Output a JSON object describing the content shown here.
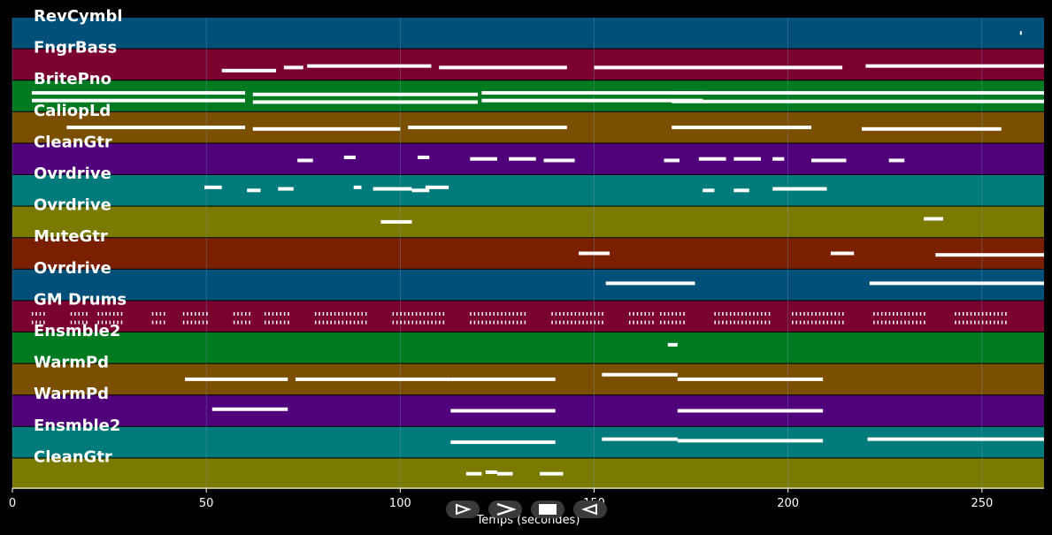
{
  "axis": {
    "xlabel": "Temps (secondes)",
    "xlim": [
      0,
      266
    ],
    "ticks": [
      0,
      50,
      100,
      150,
      200,
      250
    ],
    "tick_labels": [
      "0",
      "50",
      "100",
      "150",
      "200",
      "250"
    ]
  },
  "colors": {
    "background": "#000000",
    "gridline": "#7a9ab8",
    "note": "#ffffff",
    "control": "#3a3a3a"
  },
  "tracks": [
    {
      "name": "RevCymbl",
      "color": "#00507a",
      "notes": [
        [
          259.8,
          260.1,
          0.5
        ]
      ]
    },
    {
      "name": "FngrBass",
      "color": "#7a0030",
      "notes": [
        [
          54,
          68,
          0.7
        ],
        [
          70,
          75,
          0.6
        ],
        [
          76,
          108,
          0.55
        ],
        [
          110,
          143,
          0.6
        ],
        [
          150,
          214,
          0.6
        ],
        [
          220,
          266,
          0.55
        ]
      ]
    },
    {
      "name": "BritePno",
      "color": "#007a20",
      "notes": [
        [
          5,
          60,
          0.4
        ],
        [
          5,
          60,
          0.65
        ],
        [
          62,
          120,
          0.45
        ],
        [
          62,
          120,
          0.7
        ],
        [
          121,
          178,
          0.4
        ],
        [
          121,
          178,
          0.65
        ],
        [
          170,
          266,
          0.4
        ],
        [
          170,
          266,
          0.68
        ]
      ]
    },
    {
      "name": "CaliopLd",
      "color": "#7a5000",
      "notes": [
        [
          14,
          60,
          0.5
        ],
        [
          62,
          100,
          0.55
        ],
        [
          102,
          143,
          0.5
        ],
        [
          170,
          206,
          0.5
        ],
        [
          219,
          255,
          0.55
        ]
      ]
    },
    {
      "name": "CleanGtr",
      "color": "#50007a",
      "notes": [
        [
          73.5,
          77.5,
          0.55
        ],
        [
          85.5,
          88.5,
          0.45
        ],
        [
          104.5,
          107.5,
          0.45
        ],
        [
          118,
          125,
          0.5
        ],
        [
          128,
          135,
          0.5
        ],
        [
          137,
          145,
          0.55
        ],
        [
          168,
          172,
          0.55
        ],
        [
          177,
          184,
          0.5
        ],
        [
          186,
          193,
          0.5
        ],
        [
          196,
          199,
          0.5
        ],
        [
          206,
          215,
          0.55
        ],
        [
          226,
          230,
          0.55
        ]
      ]
    },
    {
      "name": "Ovrdrive",
      "color": "#007a7a",
      "notes": [
        [
          49.5,
          54,
          0.4
        ],
        [
          60.5,
          64,
          0.5
        ],
        [
          68.5,
          72.5,
          0.45
        ],
        [
          88,
          90,
          0.4
        ],
        [
          93,
          103,
          0.45
        ],
        [
          103,
          107.5,
          0.5
        ],
        [
          106.5,
          112.5,
          0.4
        ],
        [
          178,
          181,
          0.5
        ],
        [
          186,
          190,
          0.5
        ],
        [
          196,
          210,
          0.45
        ]
      ]
    },
    {
      "name": "Ovrdrive",
      "color": "#7a7a00",
      "notes": [
        [
          95,
          103,
          0.5
        ],
        [
          235,
          240,
          0.4
        ]
      ]
    },
    {
      "name": "MuteGtr",
      "color": "#7a2000",
      "notes": [
        [
          146,
          154,
          0.5
        ],
        [
          211,
          217,
          0.5
        ],
        [
          238,
          266,
          0.55
        ]
      ]
    },
    {
      "name": "Ovrdrive",
      "color": "#00507a",
      "notes": [
        [
          153,
          176,
          0.45
        ],
        [
          221,
          266,
          0.45
        ]
      ]
    },
    {
      "name": "GM Drums",
      "color": "#7a0030",
      "notes": []
    },
    {
      "name": "Ensmble2",
      "color": "#007a20",
      "notes": [
        [
          169,
          171.5,
          0.4
        ]
      ]
    },
    {
      "name": "WarmPd",
      "color": "#7a5000",
      "notes": [
        [
          44.5,
          71,
          0.5
        ],
        [
          73,
          113,
          0.5
        ],
        [
          113,
          140,
          0.5
        ],
        [
          152,
          171.5,
          0.35
        ],
        [
          171.5,
          209,
          0.5
        ]
      ]
    },
    {
      "name": "WarmPd",
      "color": "#50007a",
      "notes": [
        [
          51.5,
          71,
          0.45
        ],
        [
          113,
          140,
          0.5
        ],
        [
          171.5,
          209,
          0.5
        ]
      ]
    },
    {
      "name": "Ensmble2",
      "color": "#007a7a",
      "notes": [
        [
          113,
          140,
          0.5
        ],
        [
          152,
          171.5,
          0.4
        ],
        [
          171.5,
          209,
          0.45
        ],
        [
          220.5,
          266,
          0.4
        ]
      ]
    },
    {
      "name": "CleanGtr",
      "color": "#7a7a00",
      "notes": [
        [
          117,
          121,
          0.5
        ],
        [
          122,
          125,
          0.45
        ],
        [
          125,
          129,
          0.5
        ],
        [
          136,
          142,
          0.5
        ]
      ]
    }
  ],
  "drum_hits": {
    "track_index": 9,
    "clusters": [
      [
        5,
        8
      ],
      [
        15,
        19
      ],
      [
        22,
        28
      ],
      [
        36,
        39
      ],
      [
        44,
        50
      ],
      [
        57,
        61
      ],
      [
        65,
        71
      ],
      [
        78,
        83
      ],
      [
        84,
        91
      ],
      [
        98,
        104
      ],
      [
        105,
        111
      ],
      [
        118,
        123
      ],
      [
        124,
        132
      ],
      [
        139,
        145
      ],
      [
        146,
        152
      ],
      [
        159,
        165
      ],
      [
        167,
        173
      ],
      [
        181,
        187
      ],
      [
        188,
        195
      ],
      [
        201,
        206
      ],
      [
        207,
        214
      ],
      [
        222,
        227
      ],
      [
        228,
        235
      ],
      [
        243,
        248
      ],
      [
        249,
        256
      ]
    ]
  },
  "controls": [
    {
      "name": "play-forward",
      "symbol": "play-outline"
    },
    {
      "name": "fast-forward",
      "symbol": "chevron-right"
    },
    {
      "name": "stop",
      "symbol": "square"
    },
    {
      "name": "rewind",
      "symbol": "play-outline-left"
    }
  ]
}
